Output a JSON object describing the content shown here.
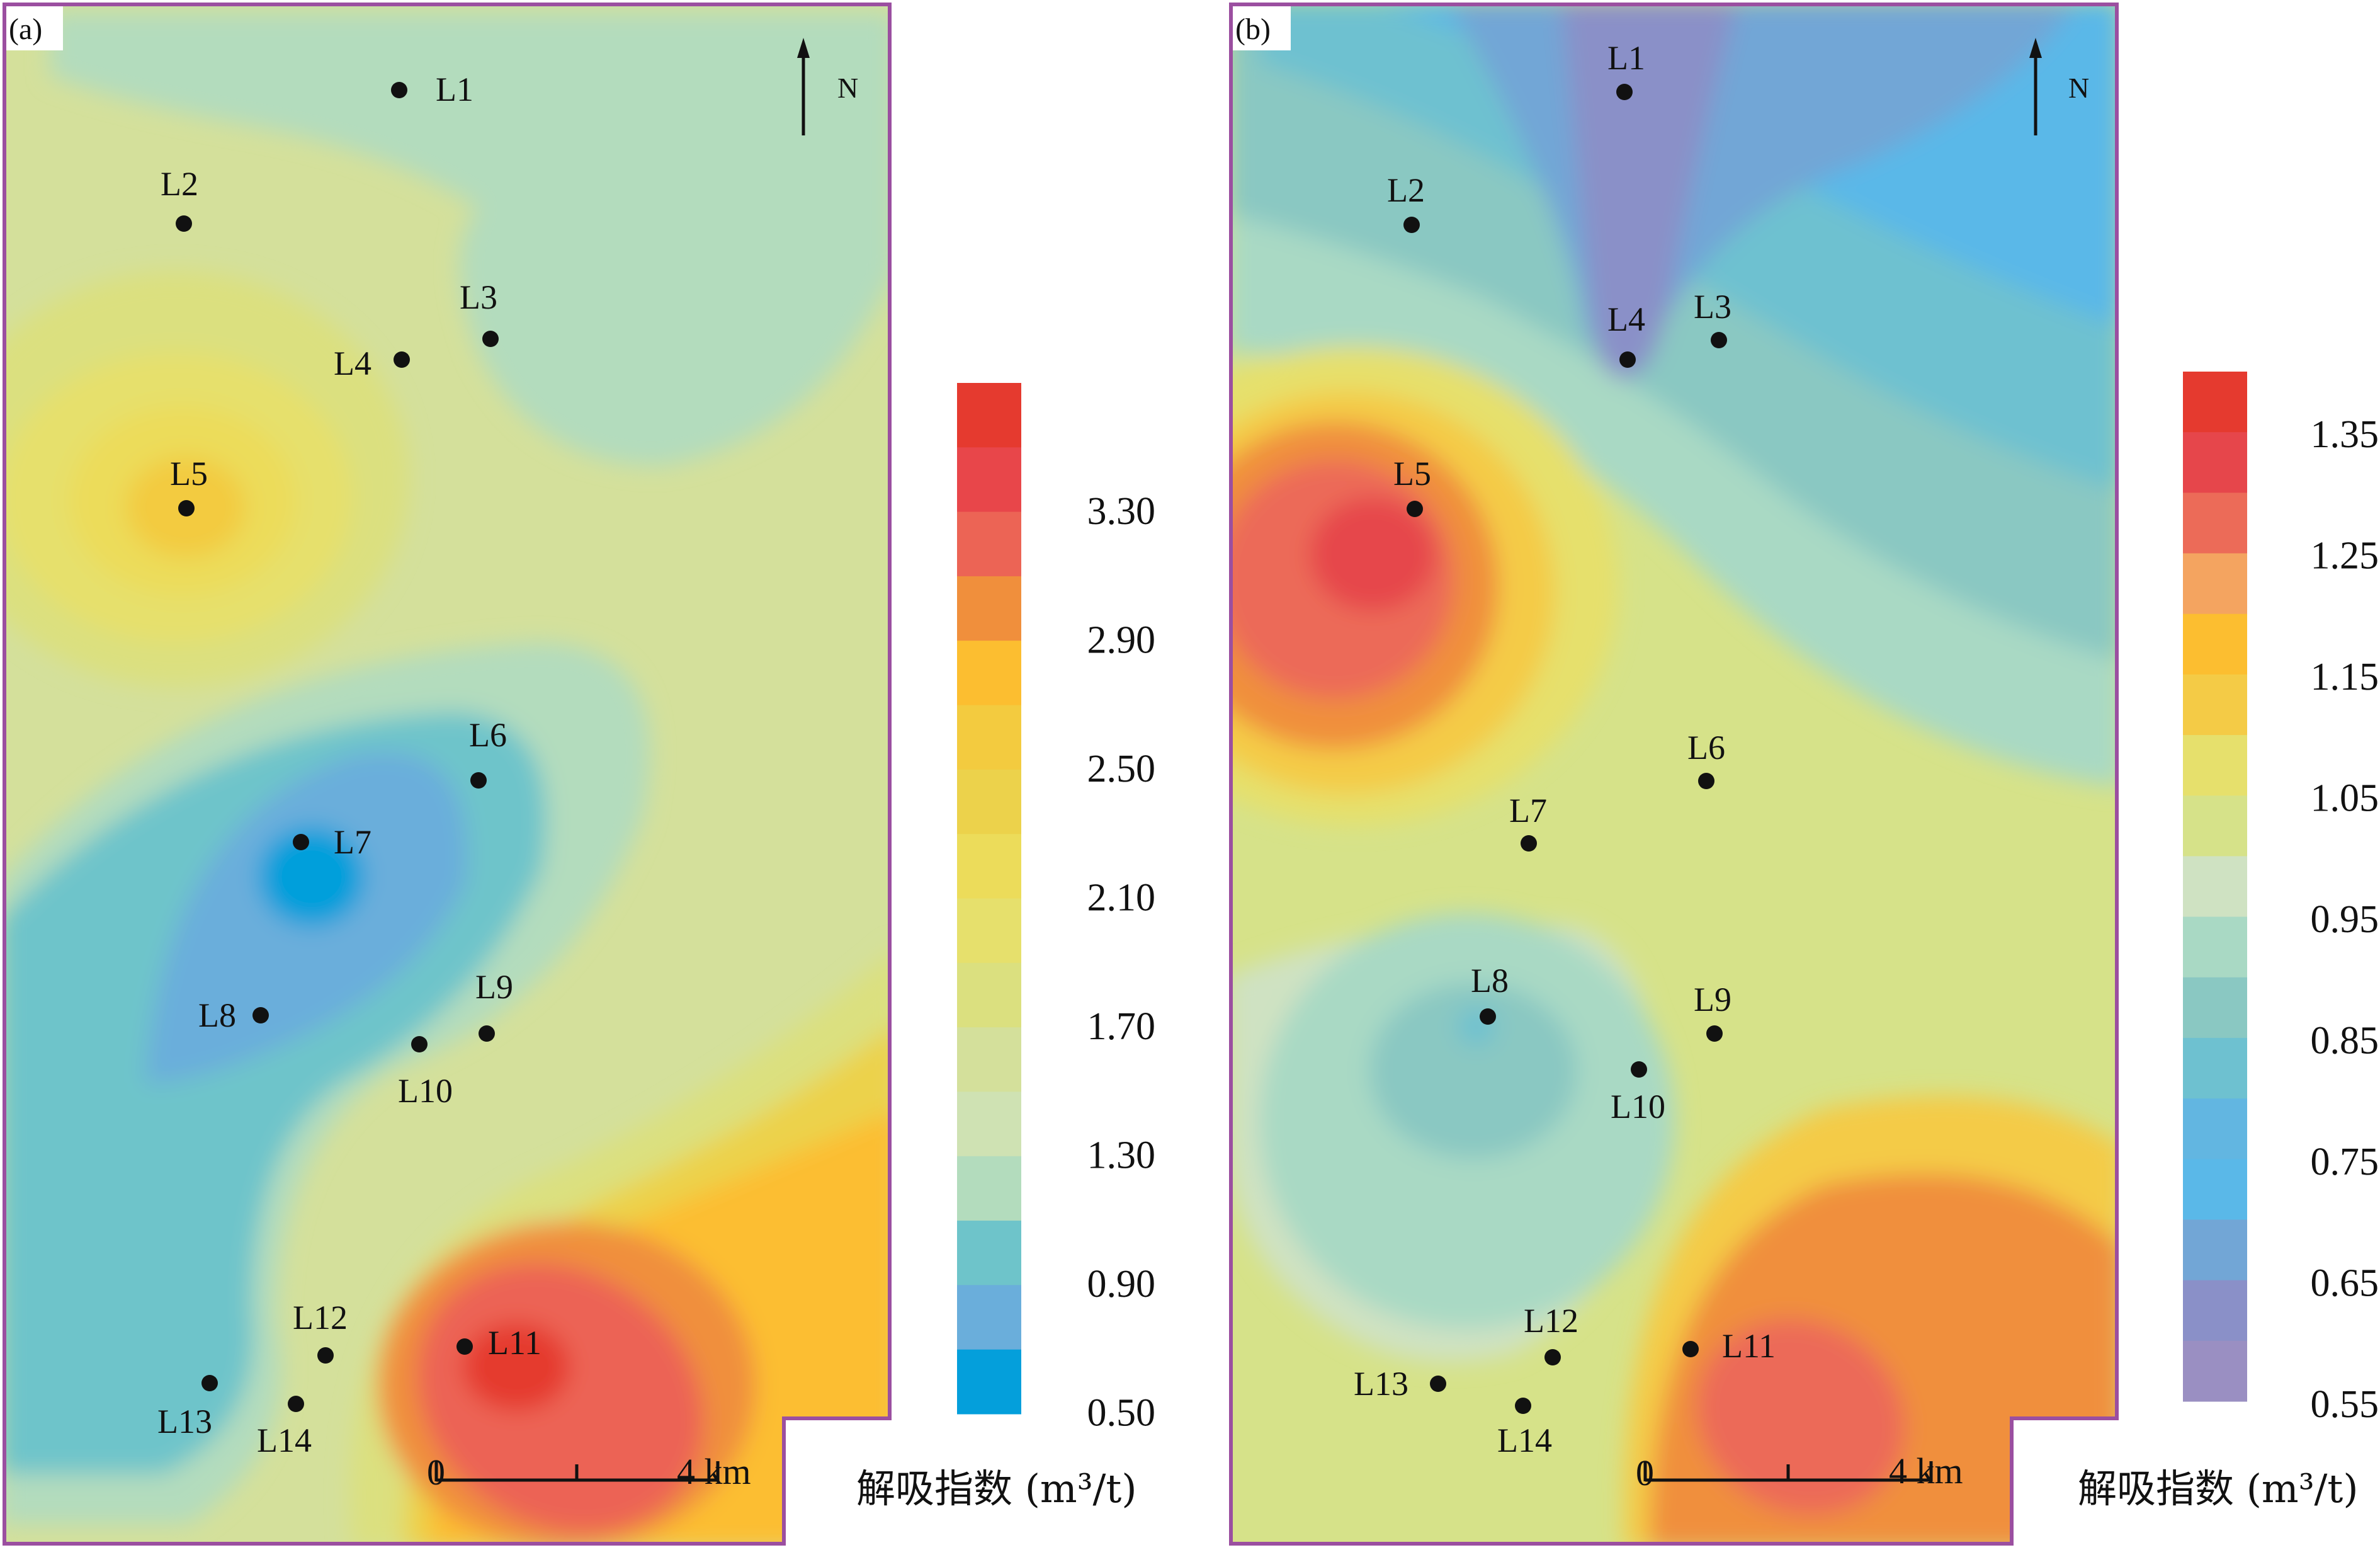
{
  "panels": [
    {
      "id": "a",
      "tag": "(a)",
      "north": "N",
      "scale": {
        "start": "0",
        "end": "4 km"
      },
      "legend": {
        "unit_label": "解吸指数 (m³/t)",
        "ticks": [
          "3.30",
          "2.90",
          "2.50",
          "2.10",
          "1.70",
          "1.30",
          "0.90",
          "0.50"
        ],
        "bin_colors": [
          "#e53a2f",
          "#e8464a",
          "#ec6455",
          "#f08f3c",
          "#fcbe30",
          "#f3cb3f",
          "#ecd24b",
          "#ecdc5a",
          "#e6e06c",
          "#dbe07f",
          "#d4e09b",
          "#cfe2b3",
          "#b3dcbd",
          "#6ec4ca",
          "#6aaedb",
          "#049fdb"
        ]
      },
      "wells": [
        {
          "label": "L1"
        },
        {
          "label": "L2"
        },
        {
          "label": "L3"
        },
        {
          "label": "L4"
        },
        {
          "label": "L5"
        },
        {
          "label": "L6"
        },
        {
          "label": "L7"
        },
        {
          "label": "L8"
        },
        {
          "label": "L9"
        },
        {
          "label": "L10"
        },
        {
          "label": "L11"
        },
        {
          "label": "L12"
        },
        {
          "label": "L13"
        },
        {
          "label": "L14"
        }
      ]
    },
    {
      "id": "b",
      "tag": "(b)",
      "north": "N",
      "scale": {
        "start": "0",
        "end": "4 km"
      },
      "legend": {
        "unit_label": "解吸指数 (m³/t)",
        "ticks": [
          "1.35",
          "1.25",
          "1.15",
          "1.05",
          "0.95",
          "0.85",
          "0.75",
          "0.65",
          "0.55"
        ],
        "bin_colors": [
          "#e53a2f",
          "#e6464b",
          "#ec6b58",
          "#f4a460",
          "#fcbe30",
          "#f4cb46",
          "#e6e06c",
          "#d6e289",
          "#cfe2c2",
          "#a9d9c4",
          "#8ac8c2",
          "#6ec1d0",
          "#62b6e1",
          "#5ab8e8",
          "#72a6d6",
          "#8a90c8",
          "#9a8fc2"
        ]
      },
      "wells": [
        {
          "label": "L1"
        },
        {
          "label": "L2"
        },
        {
          "label": "L3"
        },
        {
          "label": "L4"
        },
        {
          "label": "L5"
        },
        {
          "label": "L6"
        },
        {
          "label": "L7"
        },
        {
          "label": "L8"
        },
        {
          "label": "L9"
        },
        {
          "label": "L10"
        },
        {
          "label": "L11"
        },
        {
          "label": "L12"
        },
        {
          "label": "L13"
        },
        {
          "label": "L14"
        }
      ]
    }
  ],
  "colors": {
    "frame": "#9b4fa0",
    "well_dot": "#111111"
  }
}
